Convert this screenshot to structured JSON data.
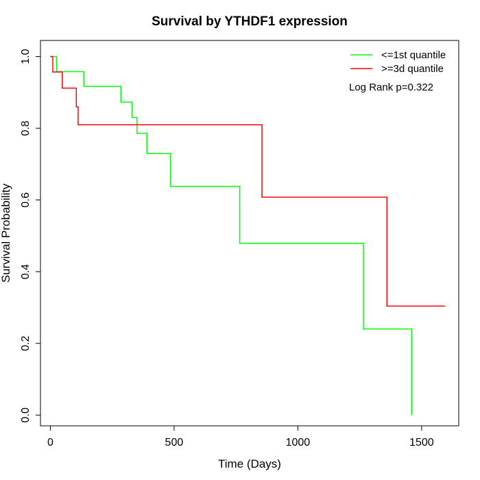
{
  "chart_data": {
    "type": "line",
    "title": "Survival by YTHDF1 expression",
    "xlabel": "Time (Days)",
    "ylabel": "Survival Probability",
    "xlim": [
      -40,
      1650
    ],
    "ylim": [
      -0.03,
      1.045
    ],
    "x_ticks": [
      0,
      500,
      1000,
      1500
    ],
    "y_ticks": [
      0.0,
      0.2,
      0.4,
      0.6,
      0.8,
      1.0
    ],
    "x_tick_labels": [
      "0",
      "500",
      "1000",
      "1500"
    ],
    "y_tick_labels": [
      "0.0",
      "0.2",
      "0.4",
      "0.6",
      "0.8",
      "1.0"
    ],
    "grid": false,
    "legend_position": "top-right",
    "annotation": "Log Rank p=0.322",
    "series": [
      {
        "name": "<=1st quantile",
        "color": "#00ff00",
        "step": true,
        "x": [
          0,
          25,
          135,
          285,
          330,
          350,
          390,
          485,
          765,
          1265,
          1460
        ],
        "y": [
          1.0,
          0.958,
          0.917,
          0.873,
          0.83,
          0.786,
          0.73,
          0.638,
          0.479,
          0.24,
          0.0
        ]
      },
      {
        "name": ">=3d quantile",
        "color": "#ff0000",
        "step": true,
        "x": [
          0,
          10,
          48,
          105,
          112,
          855,
          1360,
          1595
        ],
        "y": [
          1.0,
          0.957,
          0.912,
          0.86,
          0.81,
          0.608,
          0.304,
          0.304
        ]
      }
    ]
  }
}
